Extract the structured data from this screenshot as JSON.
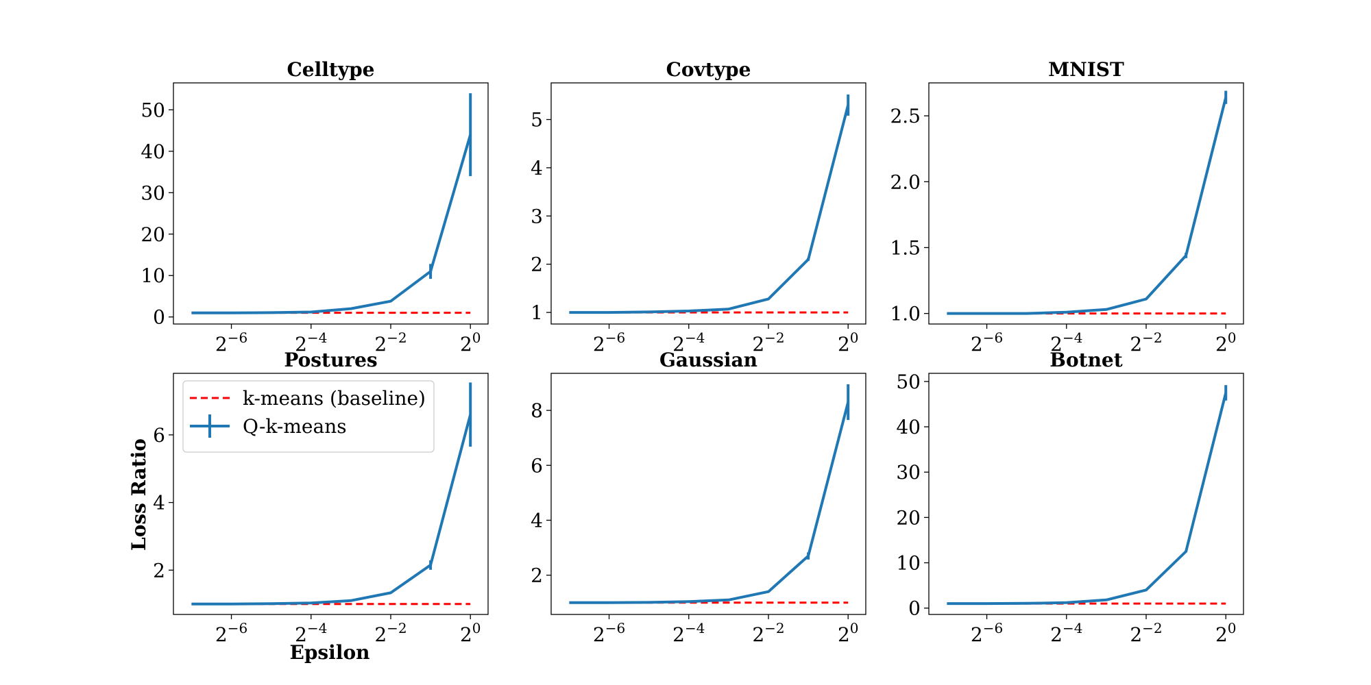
{
  "figure": {
    "ylabel": "Loss Ratio",
    "xlabel": "Epsilon",
    "legend": {
      "placement": "upper-left of panel Postures",
      "entries": [
        {
          "label": "k-means (baseline)",
          "style": "dashed",
          "color": "#ff0000"
        },
        {
          "label": "Q-k-means",
          "style": "solid-errorbar",
          "color": "#1f77b4"
        }
      ]
    }
  },
  "chart_data": [
    {
      "type": "line",
      "title": "Celltype",
      "x": [
        0.0078125,
        0.015625,
        0.03125,
        0.0625,
        0.125,
        0.25,
        0.5,
        1
      ],
      "x_tick_labels": [
        {
          "exp": "−6",
          "value": 0.015625
        },
        {
          "exp": "−4",
          "value": 0.0625
        },
        {
          "exp": "−2",
          "value": 0.25
        },
        {
          "exp": "0",
          "value": 1
        }
      ],
      "x_scale": "log2",
      "xlim": [
        0.0057,
        1.36
      ],
      "ylim": [
        -1.7,
        56.5
      ],
      "y_ticks": [
        0,
        10,
        20,
        30,
        40,
        50
      ],
      "y_tick_labels": [
        "0",
        "10",
        "20",
        "30",
        "40",
        "50"
      ],
      "baseline": 1,
      "series": [
        {
          "name": "Q-k-means",
          "values": [
            1.0,
            1.0,
            1.05,
            1.2,
            2.0,
            3.8,
            11.0,
            44.0
          ],
          "errors": [
            0,
            0,
            0,
            0,
            0,
            0.2,
            1.8,
            10.0
          ]
        }
      ]
    },
    {
      "type": "line",
      "title": "Covtype",
      "x": [
        0.0078125,
        0.015625,
        0.03125,
        0.0625,
        0.125,
        0.25,
        0.5,
        1
      ],
      "x_tick_labels": [
        {
          "exp": "−6",
          "value": 0.015625
        },
        {
          "exp": "−4",
          "value": 0.0625
        },
        {
          "exp": "−2",
          "value": 0.25
        },
        {
          "exp": "0",
          "value": 1
        }
      ],
      "x_scale": "log2",
      "xlim": [
        0.0057,
        1.36
      ],
      "ylim": [
        0.76,
        5.76
      ],
      "y_ticks": [
        1,
        2,
        3,
        4,
        5
      ],
      "y_tick_labels": [
        "1",
        "2",
        "3",
        "4",
        "5"
      ],
      "baseline": 1,
      "series": [
        {
          "name": "Q-k-means",
          "values": [
            1.0,
            1.0,
            1.01,
            1.03,
            1.07,
            1.28,
            2.1,
            5.3
          ],
          "errors": [
            0,
            0,
            0,
            0,
            0,
            0,
            0.03,
            0.22
          ]
        }
      ]
    },
    {
      "type": "line",
      "title": "MNIST",
      "x": [
        0.0078125,
        0.015625,
        0.03125,
        0.0625,
        0.125,
        0.25,
        0.5,
        1
      ],
      "x_tick_labels": [
        {
          "exp": "−6",
          "value": 0.015625
        },
        {
          "exp": "−4",
          "value": 0.0625
        },
        {
          "exp": "−2",
          "value": 0.25
        },
        {
          "exp": "0",
          "value": 1
        }
      ],
      "x_scale": "log2",
      "xlim": [
        0.0057,
        1.36
      ],
      "ylim": [
        0.92,
        2.75
      ],
      "y_ticks": [
        1.0,
        1.5,
        2.0,
        2.5
      ],
      "y_tick_labels": [
        "1.0",
        "1.5",
        "2.0",
        "2.5"
      ],
      "baseline": 1,
      "series": [
        {
          "name": "Q-k-means",
          "values": [
            1.0,
            1.0,
            1.0,
            1.01,
            1.03,
            1.11,
            1.44,
            2.64
          ],
          "errors": [
            0,
            0,
            0,
            0,
            0,
            0,
            0.02,
            0.05
          ]
        }
      ]
    },
    {
      "type": "line",
      "title": "Postures",
      "x": [
        0.0078125,
        0.015625,
        0.03125,
        0.0625,
        0.125,
        0.25,
        0.5,
        1
      ],
      "x_tick_labels": [
        {
          "exp": "−6",
          "value": 0.015625
        },
        {
          "exp": "−4",
          "value": 0.0625
        },
        {
          "exp": "−2",
          "value": 0.25
        },
        {
          "exp": "0",
          "value": 1
        }
      ],
      "x_scale": "log2",
      "xlim": [
        0.0057,
        1.36
      ],
      "ylim": [
        0.69,
        7.82
      ],
      "y_ticks": [
        2,
        4,
        6
      ],
      "y_tick_labels": [
        "2",
        "4",
        "6"
      ],
      "baseline": 1,
      "series": [
        {
          "name": "Q-k-means",
          "values": [
            1.0,
            1.0,
            1.01,
            1.03,
            1.1,
            1.33,
            2.15,
            6.6
          ],
          "errors": [
            0,
            0,
            0,
            0,
            0,
            0,
            0.14,
            0.95
          ]
        }
      ]
    },
    {
      "type": "line",
      "title": "Gaussian",
      "x": [
        0.0078125,
        0.015625,
        0.03125,
        0.0625,
        0.125,
        0.25,
        0.5,
        1
      ],
      "x_tick_labels": [
        {
          "exp": "−6",
          "value": 0.015625
        },
        {
          "exp": "−4",
          "value": 0.0625
        },
        {
          "exp": "−2",
          "value": 0.25
        },
        {
          "exp": "0",
          "value": 1
        }
      ],
      "x_scale": "log2",
      "xlim": [
        0.0057,
        1.36
      ],
      "ylim": [
        0.57,
        9.35
      ],
      "y_ticks": [
        2,
        4,
        6,
        8
      ],
      "y_tick_labels": [
        "2",
        "4",
        "6",
        "8"
      ],
      "baseline": 1,
      "series": [
        {
          "name": "Q-k-means",
          "values": [
            1.0,
            1.0,
            1.01,
            1.04,
            1.1,
            1.4,
            2.7,
            8.3
          ],
          "errors": [
            0,
            0,
            0,
            0,
            0,
            0,
            0.13,
            0.65
          ]
        }
      ]
    },
    {
      "type": "line",
      "title": "Botnet",
      "x": [
        0.0078125,
        0.015625,
        0.03125,
        0.0625,
        0.125,
        0.25,
        0.5,
        1
      ],
      "x_tick_labels": [
        {
          "exp": "−6",
          "value": 0.015625
        },
        {
          "exp": "−4",
          "value": 0.0625
        },
        {
          "exp": "−2",
          "value": 0.25
        },
        {
          "exp": "0",
          "value": 1
        }
      ],
      "x_scale": "log2",
      "xlim": [
        0.0057,
        1.36
      ],
      "ylim": [
        -1.4,
        51.8
      ],
      "y_ticks": [
        0,
        10,
        20,
        30,
        40,
        50
      ],
      "y_tick_labels": [
        "0",
        "10",
        "20",
        "30",
        "40",
        "50"
      ],
      "baseline": 1,
      "series": [
        {
          "name": "Q-k-means",
          "values": [
            1.0,
            1.0,
            1.05,
            1.2,
            1.8,
            4.0,
            12.5,
            47.5
          ],
          "errors": [
            0,
            0,
            0,
            0,
            0,
            0,
            0.2,
            1.7
          ]
        }
      ]
    }
  ]
}
